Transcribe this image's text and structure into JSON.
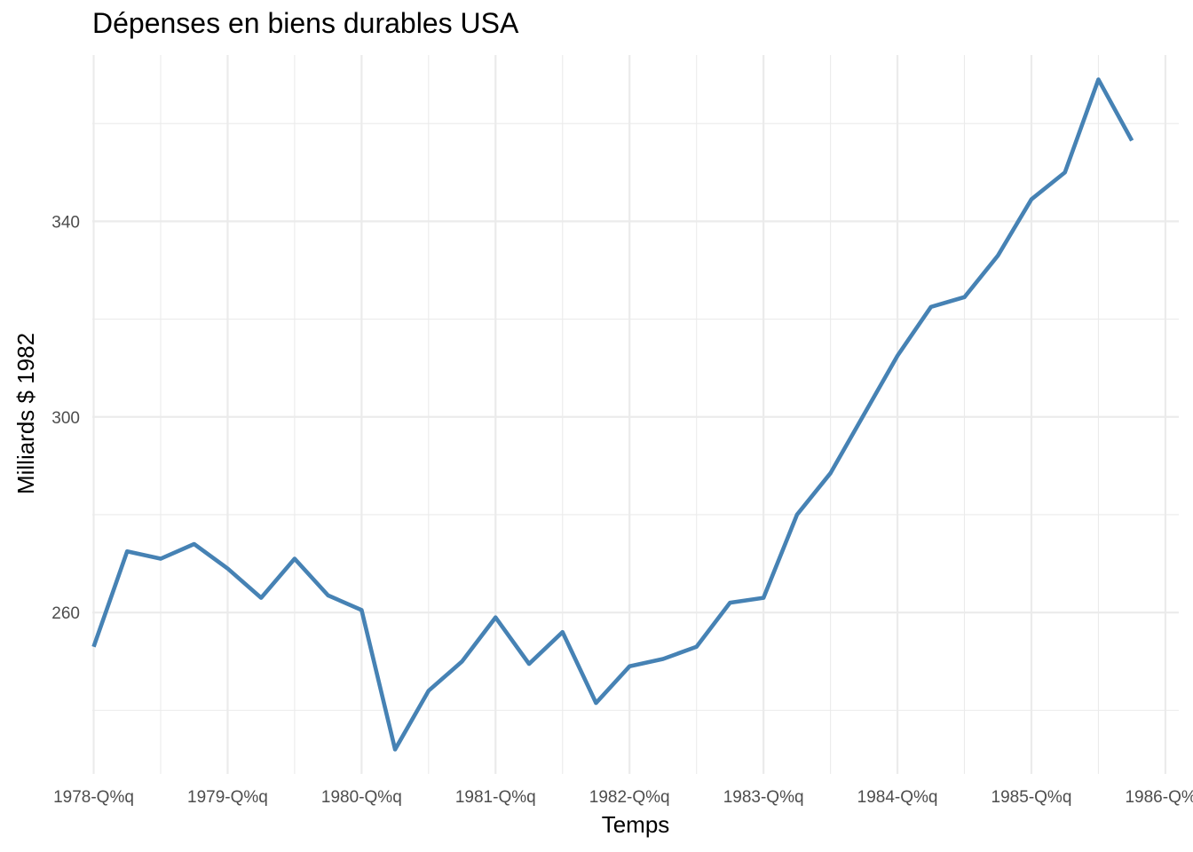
{
  "chart_data": {
    "type": "line",
    "title": "Dépenses en biens durables USA",
    "xlabel": "Temps",
    "ylabel": "Milliards $ 1982",
    "x": [
      1978.0,
      1978.25,
      1978.5,
      1978.75,
      1979.0,
      1979.25,
      1979.5,
      1979.75,
      1980.0,
      1980.25,
      1980.5,
      1980.75,
      1981.0,
      1981.25,
      1981.5,
      1981.75,
      1982.0,
      1982.25,
      1982.5,
      1982.75,
      1983.0,
      1983.25,
      1983.5,
      1983.75,
      1984.0,
      1984.25,
      1984.5,
      1984.75,
      1985.0,
      1985.25,
      1985.5,
      1985.75
    ],
    "series": [
      {
        "values": [
          253.0,
          272.5,
          271.0,
          274.0,
          269.0,
          263.0,
          271.0,
          263.5,
          260.5,
          232.0,
          244.0,
          250.0,
          259.0,
          249.5,
          256.0,
          241.5,
          249.0,
          250.5,
          253.0,
          262.0,
          263.0,
          280.0,
          288.5,
          300.5,
          312.5,
          322.5,
          324.5,
          333.0,
          344.5,
          350.0,
          369.0,
          356.5
        ],
        "color": "#4682b4"
      }
    ],
    "xlim": [
      1977.99,
      1986.1
    ],
    "ylim": [
      227.0,
      374.0
    ],
    "x_ticks": [
      1978,
      1979,
      1980,
      1981,
      1982,
      1983,
      1984,
      1985,
      1986
    ],
    "x_tick_labels": [
      "1978-Q%q",
      "1979-Q%q",
      "1980-Q%q",
      "1981-Q%q",
      "1982-Q%q",
      "1983-Q%q",
      "1984-Q%q",
      "1985-Q%q",
      "1986-Q%q"
    ],
    "y_ticks": [
      260,
      300,
      340
    ],
    "y_tick_labels": [
      "260",
      "300",
      "340"
    ],
    "y_minor_ticks": [
      240,
      280,
      320,
      360
    ],
    "grid": true,
    "legend": "none"
  }
}
